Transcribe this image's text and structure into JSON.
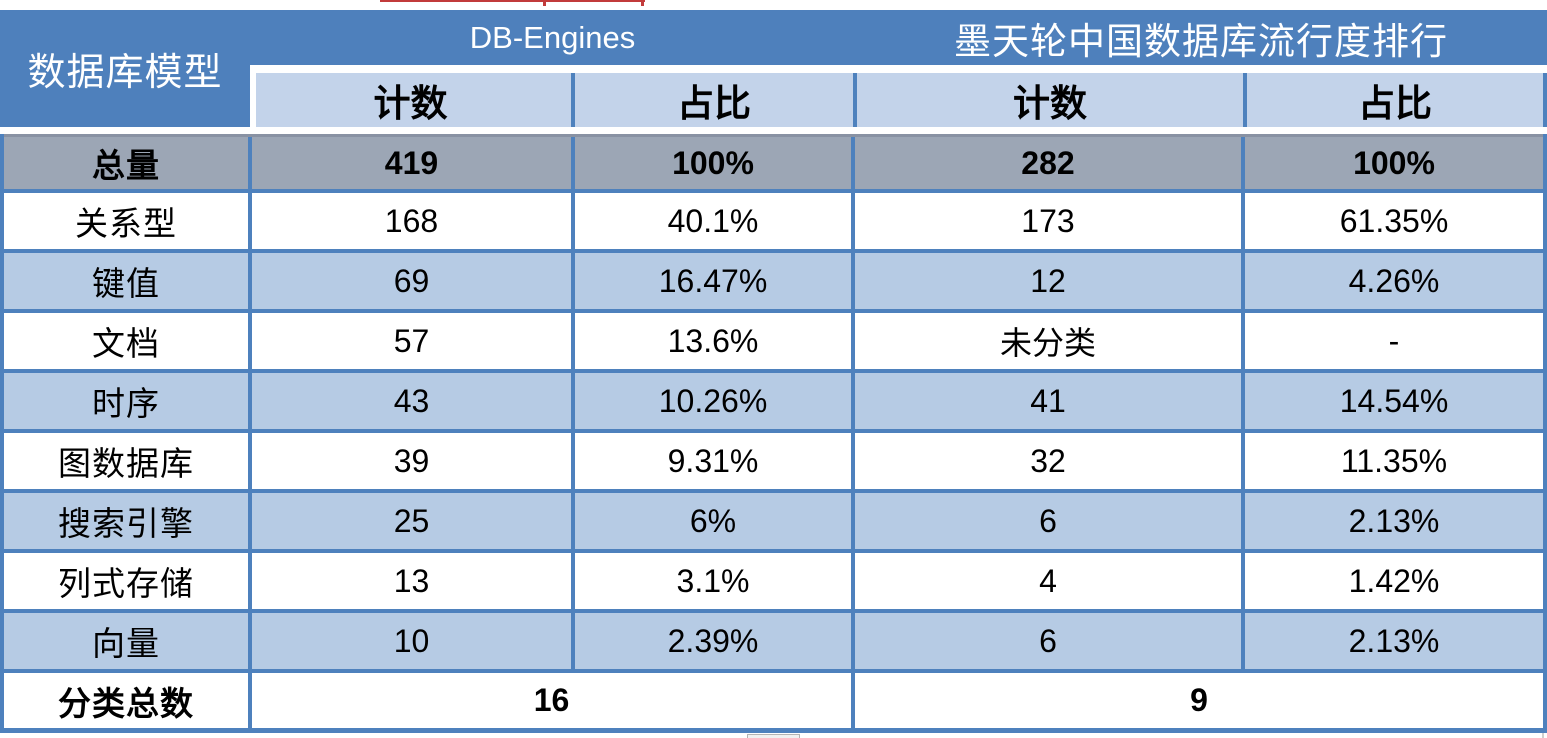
{
  "colors": {
    "header_blue": "#4E80BC",
    "subheader_blue": "#C3D3EA",
    "row_alt_blue": "#B6CBE4",
    "total_row_gray": "#9CA6B5",
    "grid_blue": "#4E81BD",
    "text_black": "#000000",
    "header_text_white": "#FFFFFF",
    "artifact_red": "#C23B3B"
  },
  "table": {
    "corner_header": "数据库模型",
    "group_headers": [
      "DB-Engines",
      "墨天轮中国数据库流行度排行"
    ],
    "sub_headers": [
      "计数",
      "占比",
      "计数",
      "占比"
    ],
    "rows": [
      {
        "label": "总量",
        "values": [
          "419",
          "100%",
          "282",
          "100%"
        ]
      },
      {
        "label": "关系型",
        "values": [
          "168",
          "40.1%",
          "173",
          "61.35%"
        ]
      },
      {
        "label": "键值",
        "values": [
          "69",
          "16.47%",
          "12",
          "4.26%"
        ]
      },
      {
        "label": "文档",
        "values": [
          "57",
          "13.6%",
          "未分类",
          "-"
        ]
      },
      {
        "label": "时序",
        "values": [
          "43",
          "10.26%",
          "41",
          "14.54%"
        ]
      },
      {
        "label": "图数据库",
        "values": [
          "39",
          "9.31%",
          "32",
          "11.35%"
        ]
      },
      {
        "label": "搜索引擎",
        "values": [
          "25",
          "6%",
          "6",
          "2.13%"
        ]
      },
      {
        "label": "列式存储",
        "values": [
          "13",
          "3.1%",
          "4",
          "1.42%"
        ]
      },
      {
        "label": "向量",
        "values": [
          "10",
          "2.39%",
          "6",
          "2.13%"
        ]
      }
    ],
    "footer": {
      "label": "分类总数",
      "values": [
        "16",
        "9"
      ]
    }
  },
  "chart_data": {
    "type": "table",
    "column_groups": [
      {
        "name": "DB-Engines",
        "columns": [
          "计数",
          "占比"
        ]
      },
      {
        "name": "墨天轮中国数据库流行度排行",
        "columns": [
          "计数",
          "占比"
        ]
      }
    ],
    "row_header_column": "数据库模型",
    "rows": [
      {
        "数据库模型": "总量",
        "DB-Engines计数": 419,
        "DB-Engines占比": "100%",
        "墨天轮计数": 282,
        "墨天轮占比": "100%"
      },
      {
        "数据库模型": "关系型",
        "DB-Engines计数": 168,
        "DB-Engines占比": "40.1%",
        "墨天轮计数": 173,
        "墨天轮占比": "61.35%"
      },
      {
        "数据库模型": "键值",
        "DB-Engines计数": 69,
        "DB-Engines占比": "16.47%",
        "墨天轮计数": 12,
        "墨天轮占比": "4.26%"
      },
      {
        "数据库模型": "文档",
        "DB-Engines计数": 57,
        "DB-Engines占比": "13.6%",
        "墨天轮计数": "未分类",
        "墨天轮占比": "-"
      },
      {
        "数据库模型": "时序",
        "DB-Engines计数": 43,
        "DB-Engines占比": "10.26%",
        "墨天轮计数": 41,
        "墨天轮占比": "14.54%"
      },
      {
        "数据库模型": "图数据库",
        "DB-Engines计数": 39,
        "DB-Engines占比": "9.31%",
        "墨天轮计数": 32,
        "墨天轮占比": "11.35%"
      },
      {
        "数据库模型": "搜索引擎",
        "DB-Engines计数": 25,
        "DB-Engines占比": "6%",
        "墨天轮计数": 6,
        "墨天轮占比": "2.13%"
      },
      {
        "数据库模型": "列式存储",
        "DB-Engines计数": 13,
        "DB-Engines占比": "3.1%",
        "墨天轮计数": 4,
        "墨天轮占比": "1.42%"
      },
      {
        "数据库模型": "向量",
        "DB-Engines计数": 10,
        "DB-Engines占比": "2.39%",
        "墨天轮计数": 6,
        "墨天轮占比": "2.13%"
      },
      {
        "数据库模型": "分类总数",
        "DB-Engines计数": 16,
        "DB-Engines占比": null,
        "墨天轮计数": 9,
        "墨天轮占比": null
      }
    ]
  }
}
